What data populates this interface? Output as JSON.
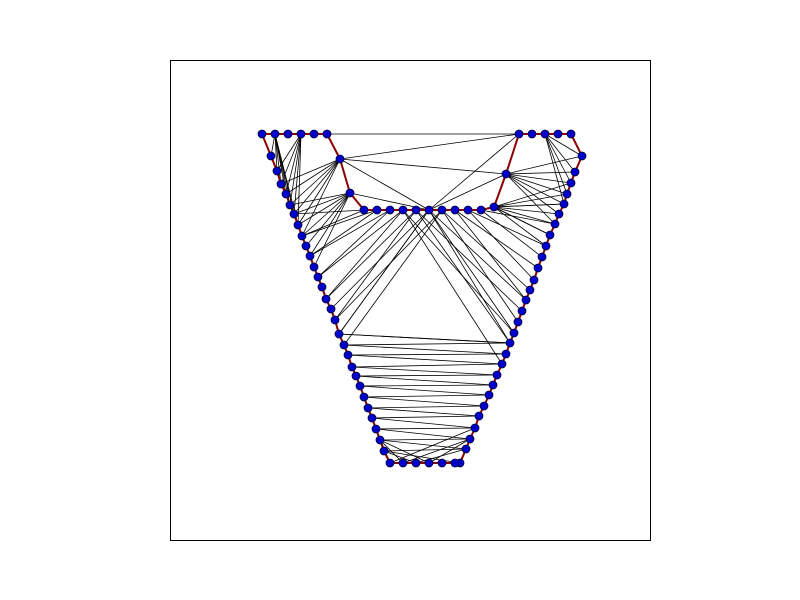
{
  "figure": {
    "colors": {
      "background": "#ffffff",
      "frame": "#000000",
      "mesh_edge": "#000000",
      "boundary_edge": "#8b0000",
      "node_fill": "#0000cc",
      "node_stroke": "#000033"
    },
    "description_items": [
      "node-icon",
      "boundary-edge",
      "mesh-edge"
    ]
  }
}
